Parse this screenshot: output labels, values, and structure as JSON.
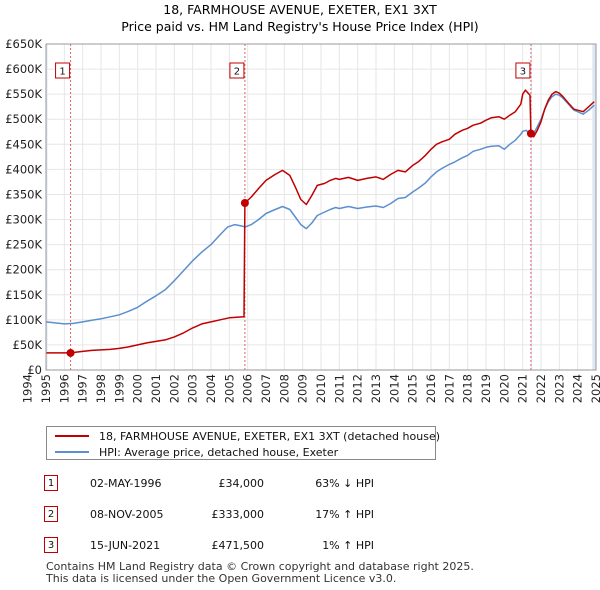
{
  "title": {
    "line1": "18, FARMHOUSE AVENUE, EXETER, EX1 3XT",
    "line2": "Price paid vs. HM Land Registry's House Price Index (HPI)"
  },
  "colors": {
    "price_paid": "#c00000",
    "hpi": "#5b8fd0",
    "shade": "#dde7f5",
    "marker_line": "#e06060"
  },
  "chart_data": {
    "type": "line",
    "x_range": [
      1995,
      2025
    ],
    "y_range": [
      0,
      650000
    ],
    "y_ticks": [
      {
        "value": 0,
        "label": "£0"
      },
      {
        "value": 50000,
        "label": "£50K"
      },
      {
        "value": 100000,
        "label": "£100K"
      },
      {
        "value": 150000,
        "label": "£150K"
      },
      {
        "value": 200000,
        "label": "£200K"
      },
      {
        "value": 250000,
        "label": "£250K"
      },
      {
        "value": 300000,
        "label": "£300K"
      },
      {
        "value": 350000,
        "label": "£350K"
      },
      {
        "value": 400000,
        "label": "£400K"
      },
      {
        "value": 450000,
        "label": "£450K"
      },
      {
        "value": 500000,
        "label": "£500K"
      },
      {
        "value": 550000,
        "label": "£550K"
      },
      {
        "value": 600000,
        "label": "£600K"
      },
      {
        "value": 650000,
        "label": "£650K"
      }
    ],
    "x_ticks": [
      "1994",
      "1995",
      "1996",
      "1997",
      "1998",
      "1999",
      "2000",
      "2001",
      "2002",
      "2003",
      "2004",
      "2005",
      "2006",
      "2007",
      "2008",
      "2009",
      "2010",
      "2011",
      "2012",
      "2013",
      "2014",
      "2015",
      "2016",
      "2017",
      "2018",
      "2019",
      "2020",
      "2021",
      "2022",
      "2023",
      "2024",
      "2025"
    ],
    "shaded_periods": [
      [
        1995.0,
        1995.08
      ],
      [
        2021.45,
        2021.5
      ],
      [
        2024.8,
        2025.0
      ]
    ],
    "series": [
      {
        "name": "18, FARMHOUSE AVENUE, EXETER, EX1 3XT (detached house)",
        "color": "#c00000",
        "points": [
          [
            1995.0,
            34000
          ],
          [
            1996.34,
            34000
          ],
          [
            1996.6,
            35500
          ],
          [
            1997.0,
            37000
          ],
          [
            1997.5,
            39000
          ],
          [
            1998.0,
            40000
          ],
          [
            1998.5,
            41000
          ],
          [
            1999.0,
            43000
          ],
          [
            1999.5,
            46000
          ],
          [
            2000.0,
            50000
          ],
          [
            2000.5,
            54000
          ],
          [
            2001.0,
            57000
          ],
          [
            2001.5,
            60000
          ],
          [
            2002.0,
            66000
          ],
          [
            2002.5,
            74000
          ],
          [
            2003.0,
            84000
          ],
          [
            2003.5,
            92000
          ],
          [
            2004.0,
            96000
          ],
          [
            2004.5,
            100000
          ],
          [
            2005.0,
            104000
          ],
          [
            2005.4,
            105000
          ],
          [
            2005.8,
            106000
          ],
          [
            2005.85,
            333000
          ],
          [
            2006.2,
            345000
          ],
          [
            2006.6,
            362000
          ],
          [
            2007.0,
            378000
          ],
          [
            2007.5,
            390000
          ],
          [
            2007.9,
            398000
          ],
          [
            2008.3,
            388000
          ],
          [
            2008.6,
            365000
          ],
          [
            2008.9,
            340000
          ],
          [
            2009.2,
            330000
          ],
          [
            2009.5,
            348000
          ],
          [
            2009.8,
            368000
          ],
          [
            2010.2,
            372000
          ],
          [
            2010.5,
            378000
          ],
          [
            2010.8,
            382000
          ],
          [
            2011.0,
            380000
          ],
          [
            2011.5,
            384000
          ],
          [
            2012.0,
            378000
          ],
          [
            2012.5,
            382000
          ],
          [
            2013.0,
            385000
          ],
          [
            2013.4,
            380000
          ],
          [
            2013.8,
            390000
          ],
          [
            2014.2,
            398000
          ],
          [
            2014.6,
            395000
          ],
          [
            2015.0,
            408000
          ],
          [
            2015.3,
            415000
          ],
          [
            2015.7,
            428000
          ],
          [
            2016.0,
            440000
          ],
          [
            2016.3,
            450000
          ],
          [
            2016.6,
            455000
          ],
          [
            2017.0,
            460000
          ],
          [
            2017.3,
            470000
          ],
          [
            2017.7,
            478000
          ],
          [
            2018.0,
            482000
          ],
          [
            2018.3,
            488000
          ],
          [
            2018.7,
            492000
          ],
          [
            2019.0,
            498000
          ],
          [
            2019.3,
            503000
          ],
          [
            2019.7,
            505000
          ],
          [
            2020.0,
            500000
          ],
          [
            2020.3,
            508000
          ],
          [
            2020.6,
            515000
          ],
          [
            2020.9,
            530000
          ],
          [
            2021.0,
            550000
          ],
          [
            2021.15,
            558000
          ],
          [
            2021.3,
            552000
          ],
          [
            2021.4,
            548000
          ],
          [
            2021.45,
            471500
          ],
          [
            2021.6,
            465000
          ],
          [
            2021.8,
            478000
          ],
          [
            2022.0,
            495000
          ],
          [
            2022.2,
            520000
          ],
          [
            2022.4,
            538000
          ],
          [
            2022.6,
            550000
          ],
          [
            2022.8,
            555000
          ],
          [
            2023.0,
            552000
          ],
          [
            2023.2,
            545000
          ],
          [
            2023.5,
            532000
          ],
          [
            2023.8,
            520000
          ],
          [
            2024.0,
            518000
          ],
          [
            2024.3,
            515000
          ],
          [
            2024.6,
            525000
          ],
          [
            2024.9,
            535000
          ]
        ]
      },
      {
        "name": "HPI: Average price, detached house, Exeter",
        "color": "#5b8fd0",
        "points": [
          [
            1995.0,
            96000
          ],
          [
            1995.5,
            94000
          ],
          [
            1996.0,
            92000
          ],
          [
            1996.5,
            93000
          ],
          [
            1997.0,
            96000
          ],
          [
            1997.5,
            99000
          ],
          [
            1998.0,
            102000
          ],
          [
            1998.5,
            106000
          ],
          [
            1999.0,
            110000
          ],
          [
            1999.5,
            117000
          ],
          [
            2000.0,
            125000
          ],
          [
            2000.5,
            137000
          ],
          [
            2001.0,
            148000
          ],
          [
            2001.5,
            160000
          ],
          [
            2002.0,
            178000
          ],
          [
            2002.5,
            198000
          ],
          [
            2003.0,
            218000
          ],
          [
            2003.5,
            235000
          ],
          [
            2004.0,
            250000
          ],
          [
            2004.5,
            270000
          ],
          [
            2004.9,
            285000
          ],
          [
            2005.3,
            290000
          ],
          [
            2005.7,
            287000
          ],
          [
            2005.85,
            285000
          ],
          [
            2006.2,
            290000
          ],
          [
            2006.6,
            300000
          ],
          [
            2007.0,
            312000
          ],
          [
            2007.5,
            320000
          ],
          [
            2007.9,
            326000
          ],
          [
            2008.3,
            320000
          ],
          [
            2008.6,
            305000
          ],
          [
            2008.9,
            290000
          ],
          [
            2009.2,
            282000
          ],
          [
            2009.5,
            293000
          ],
          [
            2009.8,
            308000
          ],
          [
            2010.2,
            315000
          ],
          [
            2010.5,
            320000
          ],
          [
            2010.8,
            324000
          ],
          [
            2011.0,
            322000
          ],
          [
            2011.5,
            326000
          ],
          [
            2012.0,
            322000
          ],
          [
            2012.5,
            325000
          ],
          [
            2013.0,
            327000
          ],
          [
            2013.4,
            324000
          ],
          [
            2013.8,
            332000
          ],
          [
            2014.2,
            342000
          ],
          [
            2014.6,
            344000
          ],
          [
            2015.0,
            355000
          ],
          [
            2015.3,
            362000
          ],
          [
            2015.7,
            373000
          ],
          [
            2016.0,
            385000
          ],
          [
            2016.3,
            395000
          ],
          [
            2016.6,
            402000
          ],
          [
            2017.0,
            410000
          ],
          [
            2017.3,
            415000
          ],
          [
            2017.7,
            423000
          ],
          [
            2018.0,
            428000
          ],
          [
            2018.3,
            436000
          ],
          [
            2018.7,
            440000
          ],
          [
            2019.0,
            444000
          ],
          [
            2019.3,
            446000
          ],
          [
            2019.7,
            447000
          ],
          [
            2020.0,
            440000
          ],
          [
            2020.3,
            450000
          ],
          [
            2020.6,
            458000
          ],
          [
            2020.9,
            470000
          ],
          [
            2021.0,
            476000
          ],
          [
            2021.2,
            478000
          ],
          [
            2021.45,
            466000
          ],
          [
            2021.6,
            472000
          ],
          [
            2021.8,
            485000
          ],
          [
            2022.0,
            500000
          ],
          [
            2022.2,
            520000
          ],
          [
            2022.4,
            535000
          ],
          [
            2022.6,
            545000
          ],
          [
            2022.8,
            550000
          ],
          [
            2023.0,
            548000
          ],
          [
            2023.2,
            542000
          ],
          [
            2023.5,
            530000
          ],
          [
            2023.8,
            518000
          ],
          [
            2024.0,
            515000
          ],
          [
            2024.3,
            510000
          ],
          [
            2024.6,
            518000
          ],
          [
            2024.9,
            528000
          ]
        ]
      }
    ],
    "transactions": [
      {
        "id": "1",
        "x": 1996.34,
        "y": 34000
      },
      {
        "id": "2",
        "x": 2005.85,
        "y": 333000
      },
      {
        "id": "3",
        "x": 2021.45,
        "y": 471500
      }
    ]
  },
  "legend": {
    "price_paid_label": "18, FARMHOUSE AVENUE, EXETER, EX1 3XT (detached house)",
    "hpi_label": "HPI: Average price, detached house, Exeter"
  },
  "transactions_table": [
    {
      "id": "1",
      "date": "02-MAY-1996",
      "price": "£34,000",
      "hpi": "63% ↓ HPI"
    },
    {
      "id": "2",
      "date": "08-NOV-2005",
      "price": "£333,000",
      "hpi": "17% ↑ HPI"
    },
    {
      "id": "3",
      "date": "15-JUN-2021",
      "price": "£471,500",
      "hpi": "1% ↑ HPI"
    }
  ],
  "footer": {
    "line1": "Contains HM Land Registry data © Crown copyright and database right 2025.",
    "line2": "This data is licensed under the Open Government Licence v3.0."
  }
}
